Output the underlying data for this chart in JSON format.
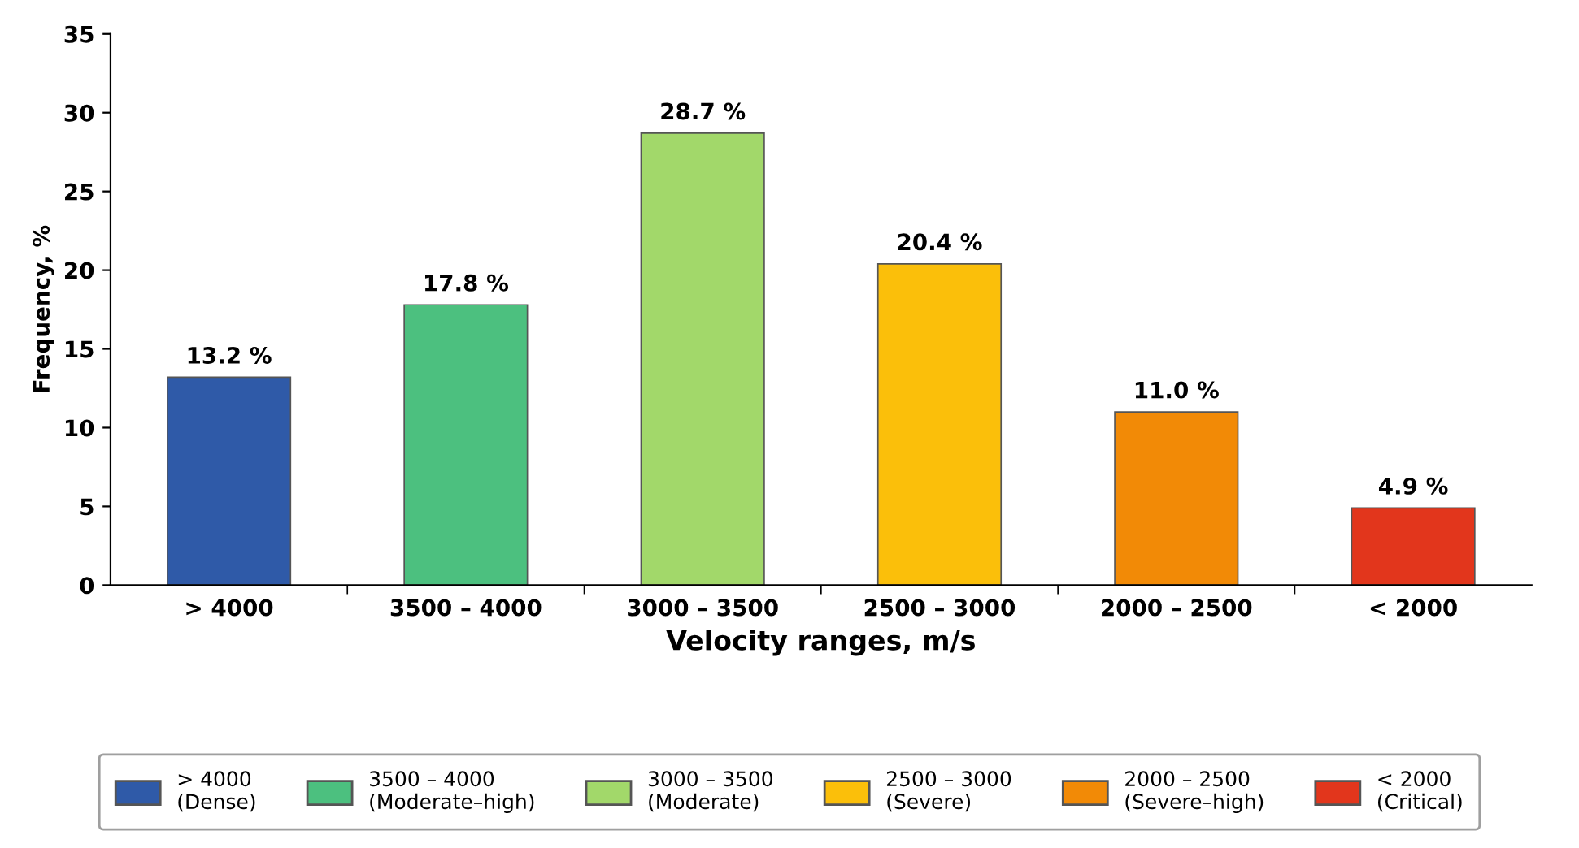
{
  "chart_data": {
    "type": "bar",
    "xlabel": "Velocity ranges, m/s",
    "ylabel": "Frequency, %",
    "categories": [
      "> 4000",
      "3500 – 4000",
      "3000 – 3500",
      "2500 – 3000",
      "2000 – 2500",
      "< 2000"
    ],
    "series": [
      {
        "name": "> 4000\n(Dense)",
        "color": "#2f5aa8",
        "values": [
          13.2,
          null,
          null,
          null,
          null,
          null
        ],
        "value_labels": [
          "13.2 %",
          null,
          null,
          null,
          null,
          null
        ]
      },
      {
        "name": "3500 – 4000\n(Moderate–high)",
        "color": "#4cc07f",
        "values": [
          null,
          17.8,
          null,
          null,
          null,
          null
        ],
        "value_labels": [
          null,
          "17.8 %",
          null,
          null,
          null,
          null
        ]
      },
      {
        "name": "3000 – 3500\n(Moderate)",
        "color": "#a2d86a",
        "values": [
          null,
          null,
          28.7,
          null,
          null,
          null
        ],
        "value_labels": [
          null,
          null,
          "28.7 %",
          null,
          null,
          null
        ]
      },
      {
        "name": "2500 – 3000\n(Severe)",
        "color": "#fbbf0a",
        "values": [
          null,
          null,
          null,
          20.4,
          null,
          null
        ],
        "value_labels": [
          null,
          null,
          null,
          "20.4 %",
          null,
          null
        ]
      },
      {
        "name": "2000 – 2500\n(Severe–high)",
        "color": "#f28a06",
        "values": [
          null,
          null,
          null,
          null,
          11.0,
          null
        ],
        "value_labels": [
          null,
          null,
          null,
          null,
          "11.0 %",
          null
        ]
      },
      {
        "name": "< 2000\n(Critical)",
        "color": "#e2361c",
        "values": [
          null,
          null,
          null,
          null,
          null,
          4.9
        ],
        "value_labels": [
          null,
          null,
          null,
          null,
          null,
          "4.9 %"
        ]
      }
    ],
    "ylim": [
      0,
      35
    ],
    "yticks": [
      0,
      5,
      10,
      15,
      20,
      25,
      30,
      35
    ],
    "grid": false,
    "legend": "bottom"
  }
}
